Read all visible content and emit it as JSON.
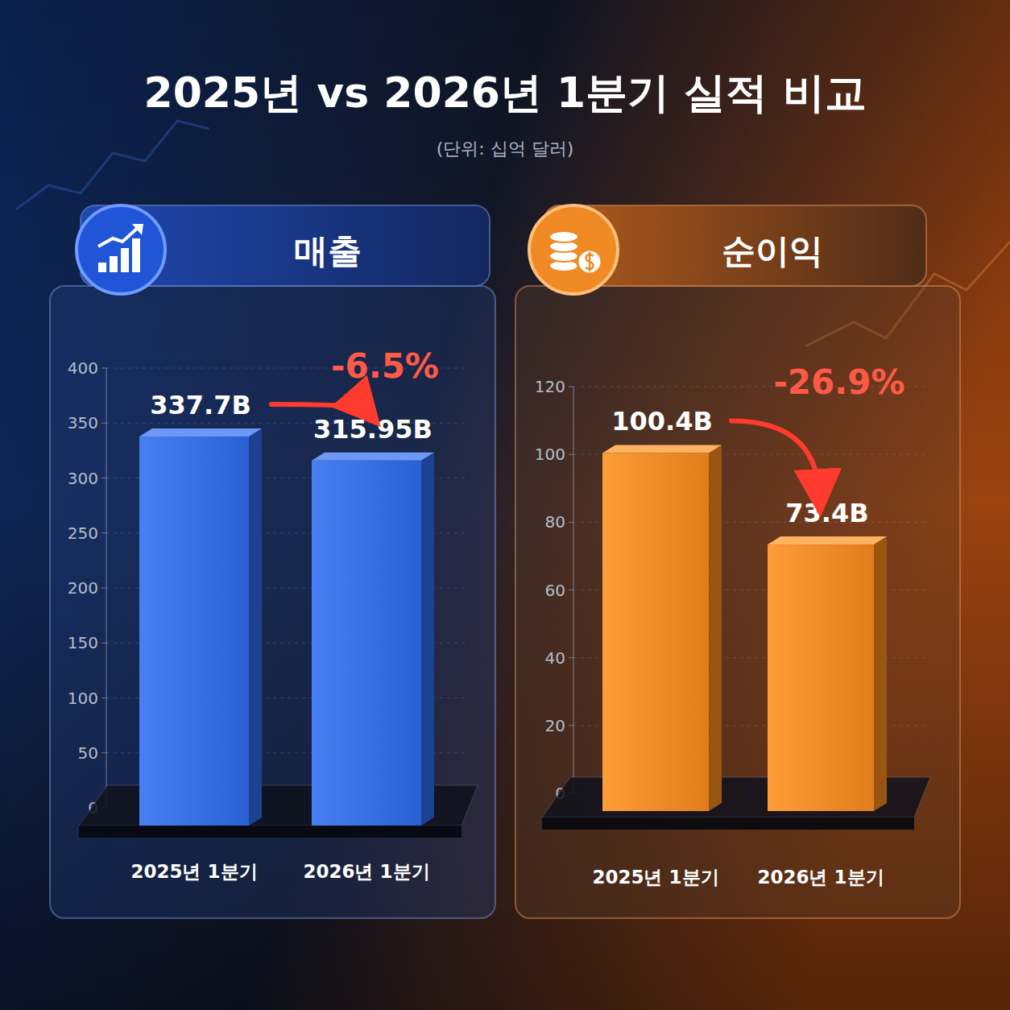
{
  "title": "2025년 vs 2026년 1분기 실적 비교",
  "subtitle": "(단위: 십억 달러)",
  "chart_data": [
    {
      "type": "bar",
      "title": "매출",
      "categories": [
        "2025년 1분기",
        "2026년 1분기"
      ],
      "values": [
        337.7,
        315.95
      ],
      "value_labels": [
        "337.7B",
        "315.95B"
      ],
      "color": "#2f6df0",
      "ylim": [
        0,
        400
      ],
      "yticks": [
        0,
        50,
        100,
        150,
        200,
        250,
        300,
        350,
        400
      ],
      "grid": true,
      "data_labels": true,
      "annotation": "-6.5%"
    },
    {
      "type": "bar",
      "title": "순이익",
      "categories": [
        "2025년 1분기",
        "2026년 1분기"
      ],
      "values": [
        100.4,
        73.4
      ],
      "value_labels": [
        "100.4B",
        "73.4B"
      ],
      "color": "#ff8f1f",
      "ylim": [
        0,
        120
      ],
      "yticks": [
        0,
        20,
        40,
        60,
        80,
        100,
        120
      ],
      "grid": true,
      "data_labels": true,
      "annotation": "-26.9%"
    }
  ]
}
